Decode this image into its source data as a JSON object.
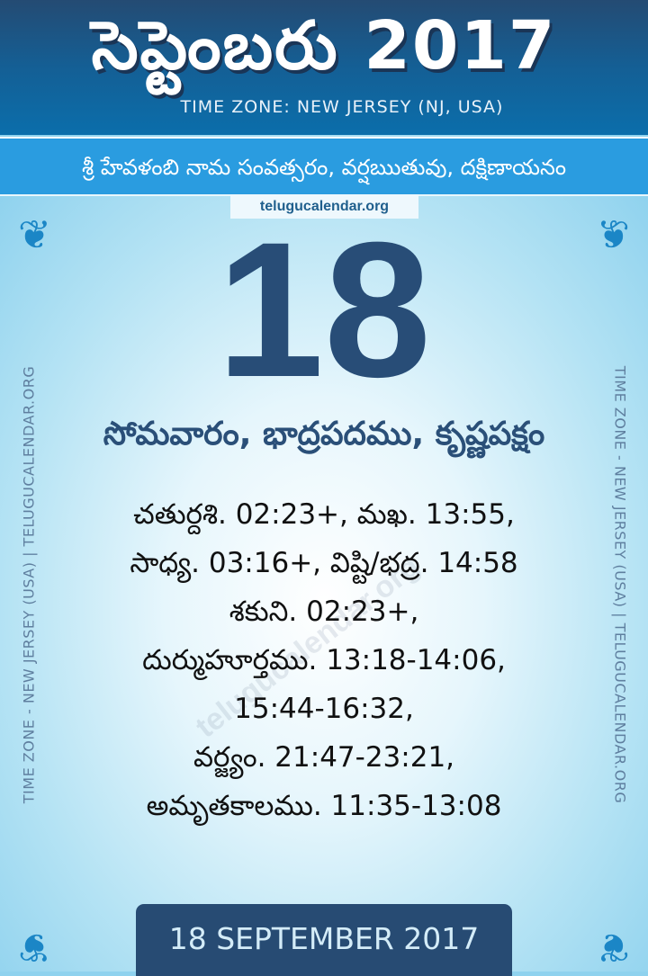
{
  "header": {
    "title": "సెప్టెంబరు 2017",
    "timezone": "TIME ZONE: NEW JERSEY (NJ, USA)"
  },
  "banner": {
    "year_info": "శ్రీ హేవళంబి నామ సంవత్సరం, వర్షఋతువు, దక్షిణాయనం"
  },
  "site_tag": "telugucalendar.org",
  "day": {
    "number": "18",
    "weekday_info": "సోమవారం, భాద్రపదము, కృష్ణపక్షం"
  },
  "details": [
    "చతుర్దశి. 02:23+, మఖ. 13:55,",
    "సాధ్య. 03:16+, విష్టి/భద్ర. 14:58",
    "శకుని. 02:23+,",
    "దుర్ముహూర్తము. 13:18-14:06,",
    "15:44-16:32,",
    "వర్జ్యం. 21:47-23:21,",
    "అమృతకాలము. 11:35-13:08"
  ],
  "side_text": "TIME ZONE - NEW JERSEY (USA) | TELUGUCALENDAR.ORG",
  "watermark": "telugucalendar.org",
  "footer": {
    "date": "18 SEPTEMBER 2017"
  },
  "colors": {
    "header": "#1a5d93",
    "banner": "#2a9ce0",
    "day": "#284d77",
    "footer": "#274b73"
  }
}
